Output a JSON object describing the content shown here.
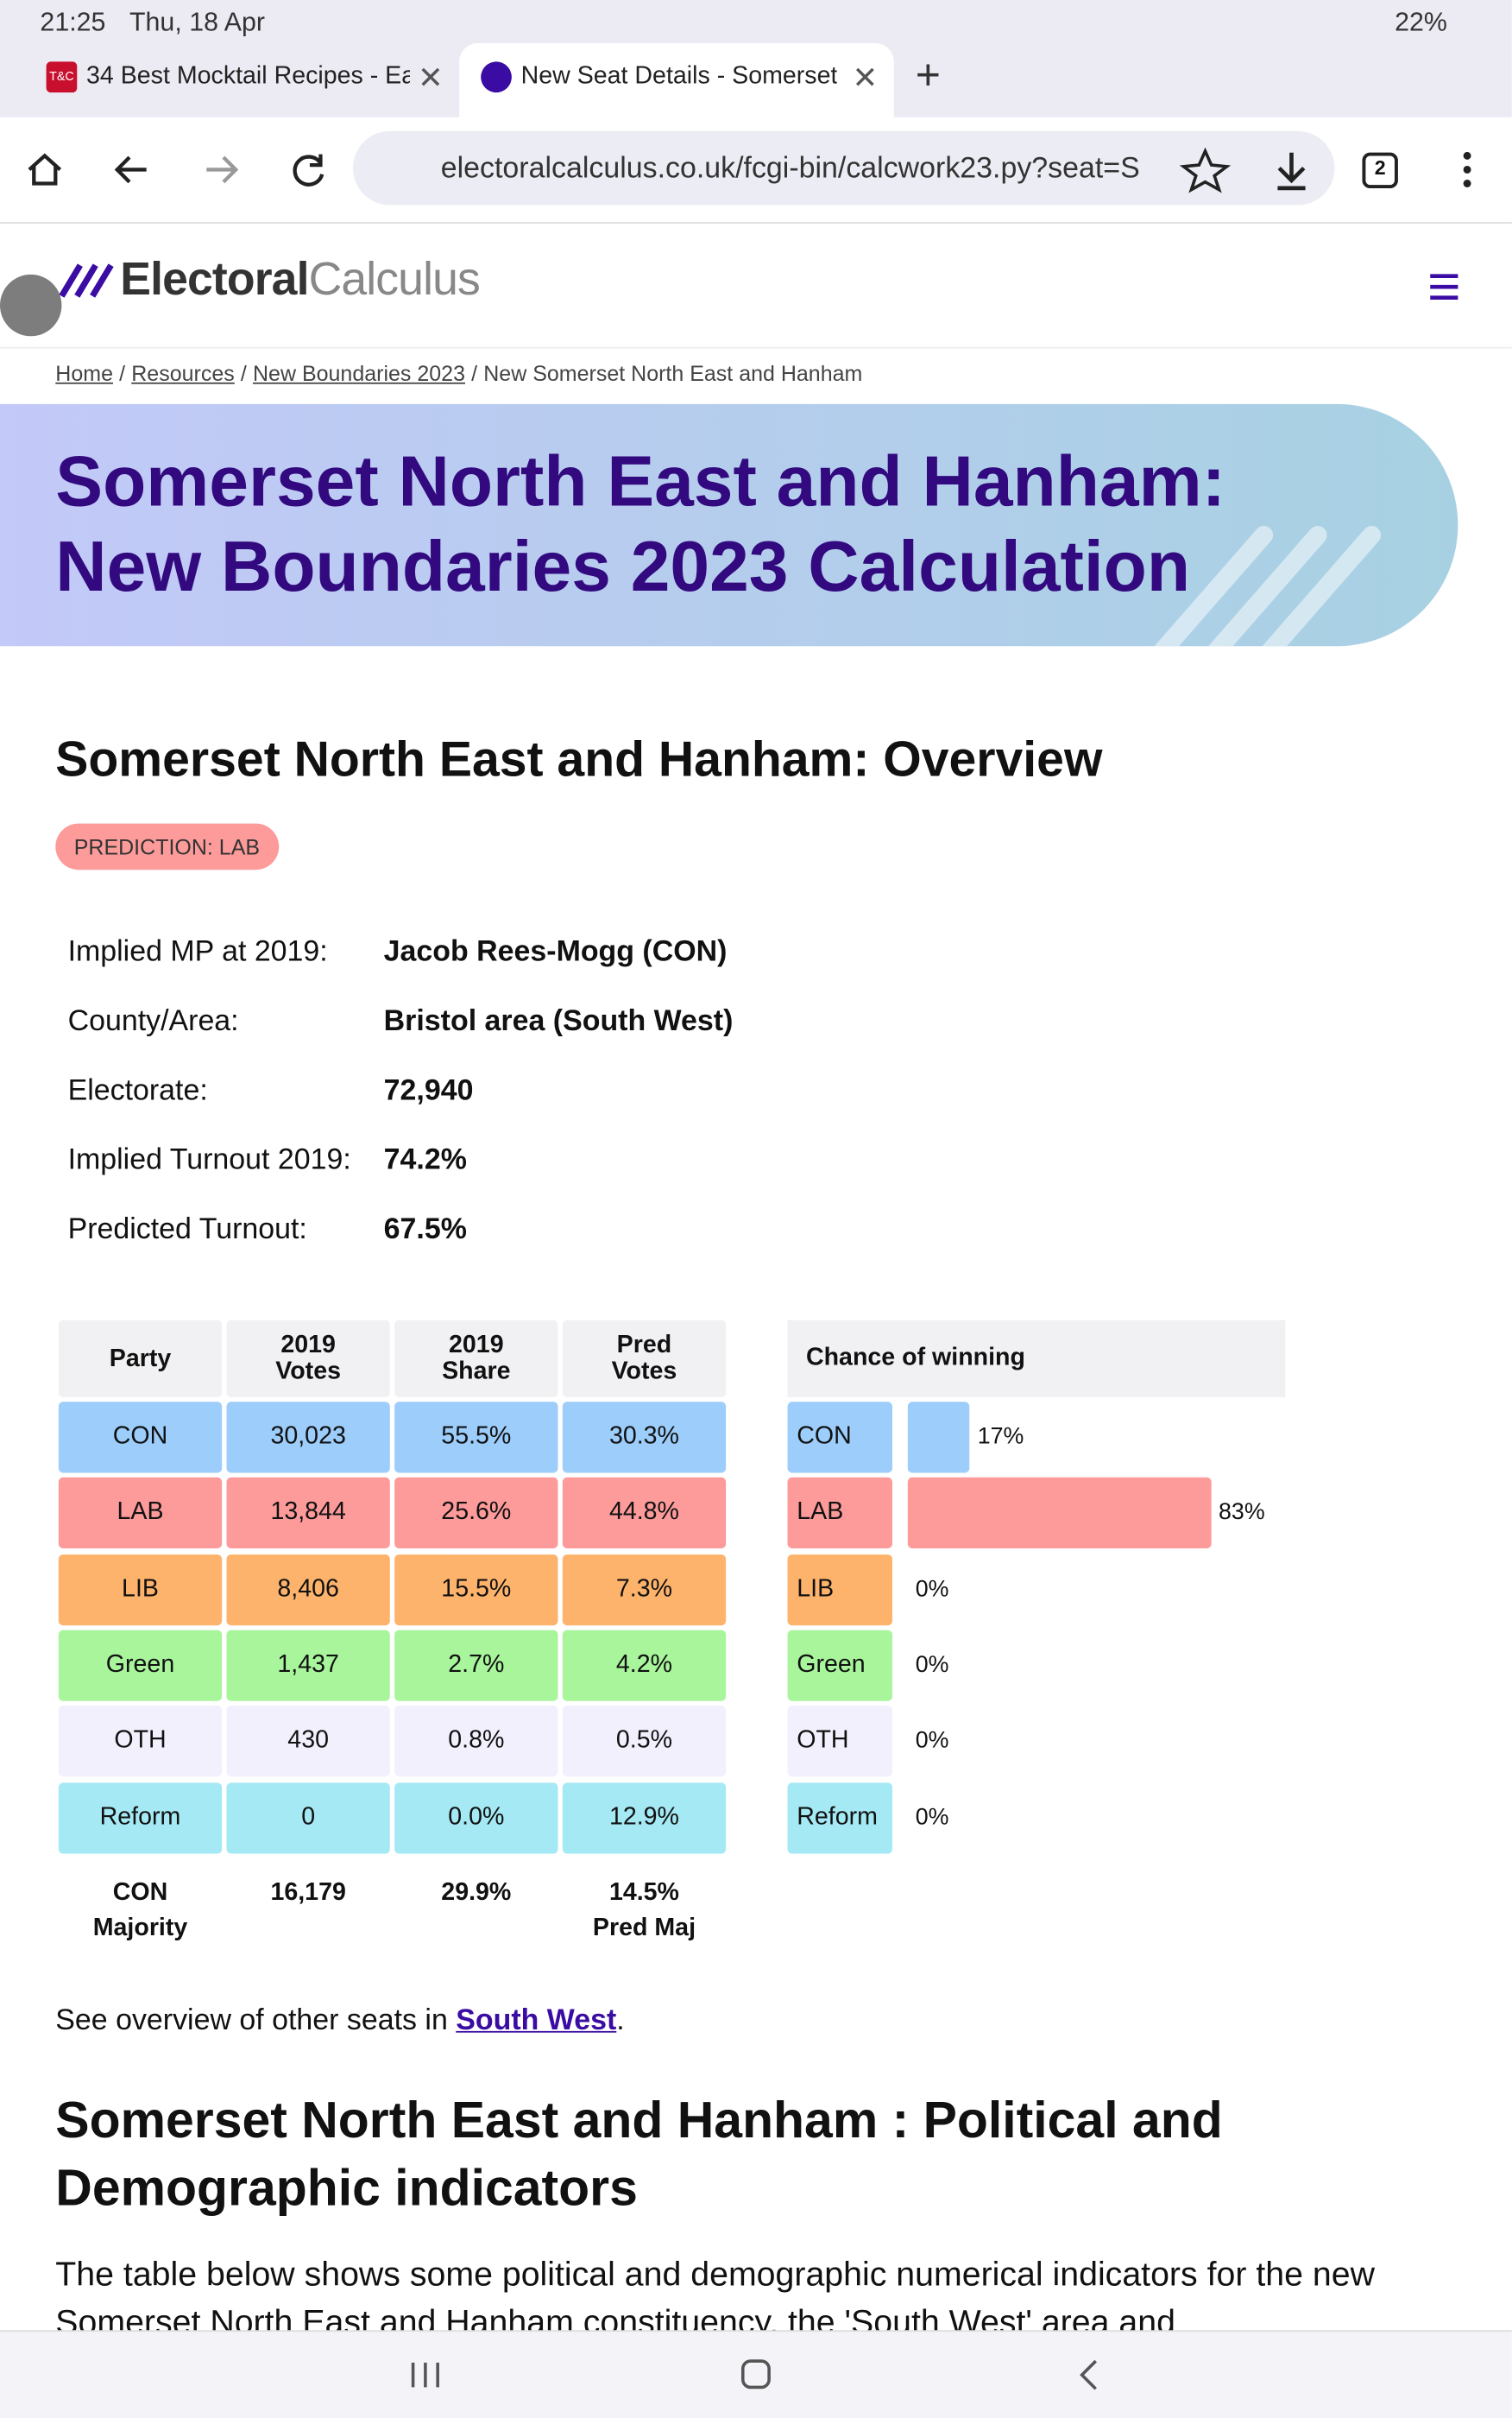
{
  "status": {
    "time": "21:25",
    "date": "Thu, 18 Apr",
    "battery": "22%"
  },
  "tabs": [
    {
      "icon": "T&C",
      "title": "34 Best Mocktail Recipes - Ea"
    },
    {
      "title": "New Seat Details - Somerset"
    }
  ],
  "toolbar": {
    "url": "electoralcalculus.co.uk/fcgi-bin/calcwork23.py?seat=S",
    "tab_count": "2"
  },
  "site": {
    "logo_bold": "Electoral",
    "logo_light": "Calculus"
  },
  "breadcrumb": {
    "links": [
      "Home",
      "Resources",
      "New Boundaries 2023"
    ],
    "current": "New Somerset North East and Hanham",
    "separator": "/"
  },
  "hero": {
    "title_lines": [
      "Somerset North East and Hanham:",
      "New Boundaries 2023 Calculation"
    ]
  },
  "overview": {
    "heading": "Somerset North East and Hanham: Overview",
    "badge": "PREDICTION: LAB",
    "info": [
      [
        "Implied MP at 2019:",
        "Jacob Rees-Mogg  (CON)"
      ],
      [
        "County/Area:",
        "Bristol area (South West)"
      ],
      [
        "Electorate:",
        "72,940"
      ],
      [
        "Implied Turnout 2019:",
        "74.2%"
      ],
      [
        "Predicted Turnout:",
        "67.5%"
      ]
    ]
  },
  "results": {
    "header": [
      [
        "Party"
      ],
      [
        "2019",
        "Votes"
      ],
      [
        "2019",
        "Share"
      ],
      [
        "Pred",
        "Votes"
      ]
    ],
    "rows": [
      {
        "color": "#9ccdfb",
        "cells": [
          "CON",
          "30,023",
          "55.5%",
          "30.3%"
        ]
      },
      {
        "color": "#fd9a9a",
        "cells": [
          "LAB",
          "13,844",
          "25.6%",
          "44.8%"
        ]
      },
      {
        "color": "#fdb36b",
        "cells": [
          "LIB",
          "8,406",
          "15.5%",
          "7.3%"
        ]
      },
      {
        "color": "#a8f59c",
        "cells": [
          "Green",
          "1,437",
          "2.7%",
          "4.2%"
        ]
      },
      {
        "color": "#f3f0fd",
        "cells": [
          "OTH",
          "430",
          "0.8%",
          "0.5%"
        ]
      },
      {
        "color": "#a4e9f4",
        "cells": [
          "Reform",
          "0",
          "0.0%",
          "12.9%"
        ]
      }
    ],
    "footer": [
      [
        "CON",
        "Majority"
      ],
      [
        "16,179"
      ],
      [
        "29.9%"
      ],
      [
        "14.5%",
        "Pred Maj"
      ]
    ]
  },
  "chance": {
    "header": "Chance of winning",
    "rows": [
      {
        "party": "CON",
        "value": 17,
        "label": "17%"
      },
      {
        "party": "LAB",
        "value": 83,
        "label": "83%"
      },
      {
        "party": "LIB",
        "value": 0,
        "label": "0%"
      },
      {
        "party": "Green",
        "value": 0,
        "label": "0%"
      },
      {
        "party": "OTH",
        "value": 0,
        "label": "0%"
      },
      {
        "party": "Reform",
        "value": 0,
        "label": "0%"
      }
    ]
  },
  "see_other": {
    "before": "See overview of other seats in ",
    "link": "South West",
    "after": "."
  },
  "indicators": {
    "heading_lines": [
      "Somerset North East and Hanham : Political and",
      "Demographic indicators"
    ],
    "paragraph": "The table below shows some political and demographic numerical indicators for the new Somerset North East and Hanham constituency, the 'South West' area and"
  }
}
